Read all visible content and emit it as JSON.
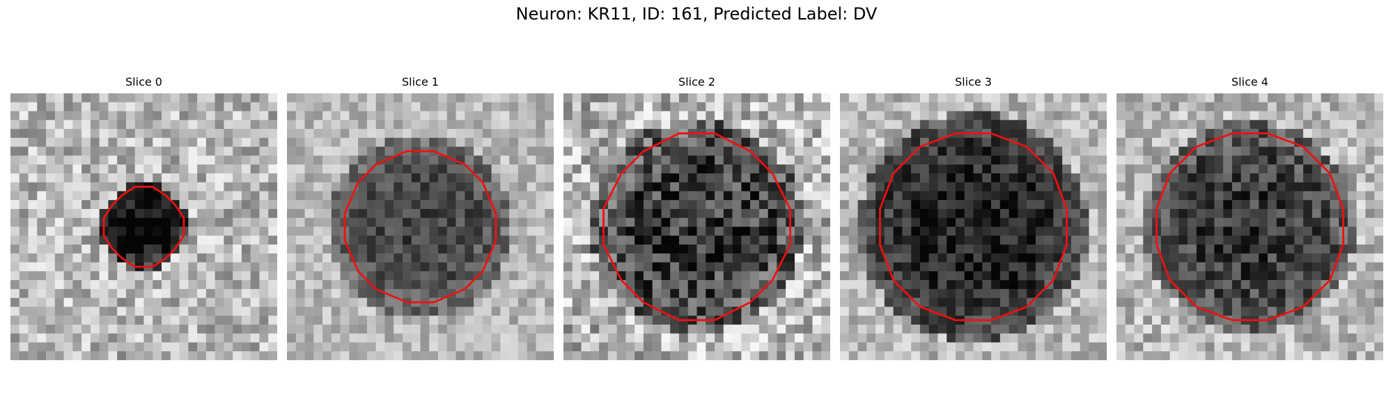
{
  "figure": {
    "title": "Neuron: KR11, ID: 161, Predicted Label: DV"
  },
  "slices": [
    {
      "label": "Slice 0",
      "seed": 11,
      "blob_radius": 0.16,
      "blob_dark": 0.75,
      "noise": 0.45,
      "contour_radius": 0.3
    },
    {
      "label": "Slice 1",
      "seed": 23,
      "blob_radius": 0.34,
      "blob_dark": 0.45,
      "noise": 0.3,
      "contour_radius": 0.58
    },
    {
      "label": "Slice 2",
      "seed": 37,
      "blob_radius": 0.4,
      "blob_dark": 0.5,
      "noise": 0.55,
      "contour_radius": 0.7
    },
    {
      "label": "Slice 3",
      "seed": 41,
      "blob_radius": 0.43,
      "blob_dark": 0.6,
      "noise": 0.35,
      "contour_radius": 0.72
    },
    {
      "label": "Slice 4",
      "seed": 53,
      "blob_radius": 0.4,
      "blob_dark": 0.5,
      "noise": 0.4,
      "contour_radius": 0.72
    }
  ],
  "colors": {
    "contour": "#ee1111"
  }
}
